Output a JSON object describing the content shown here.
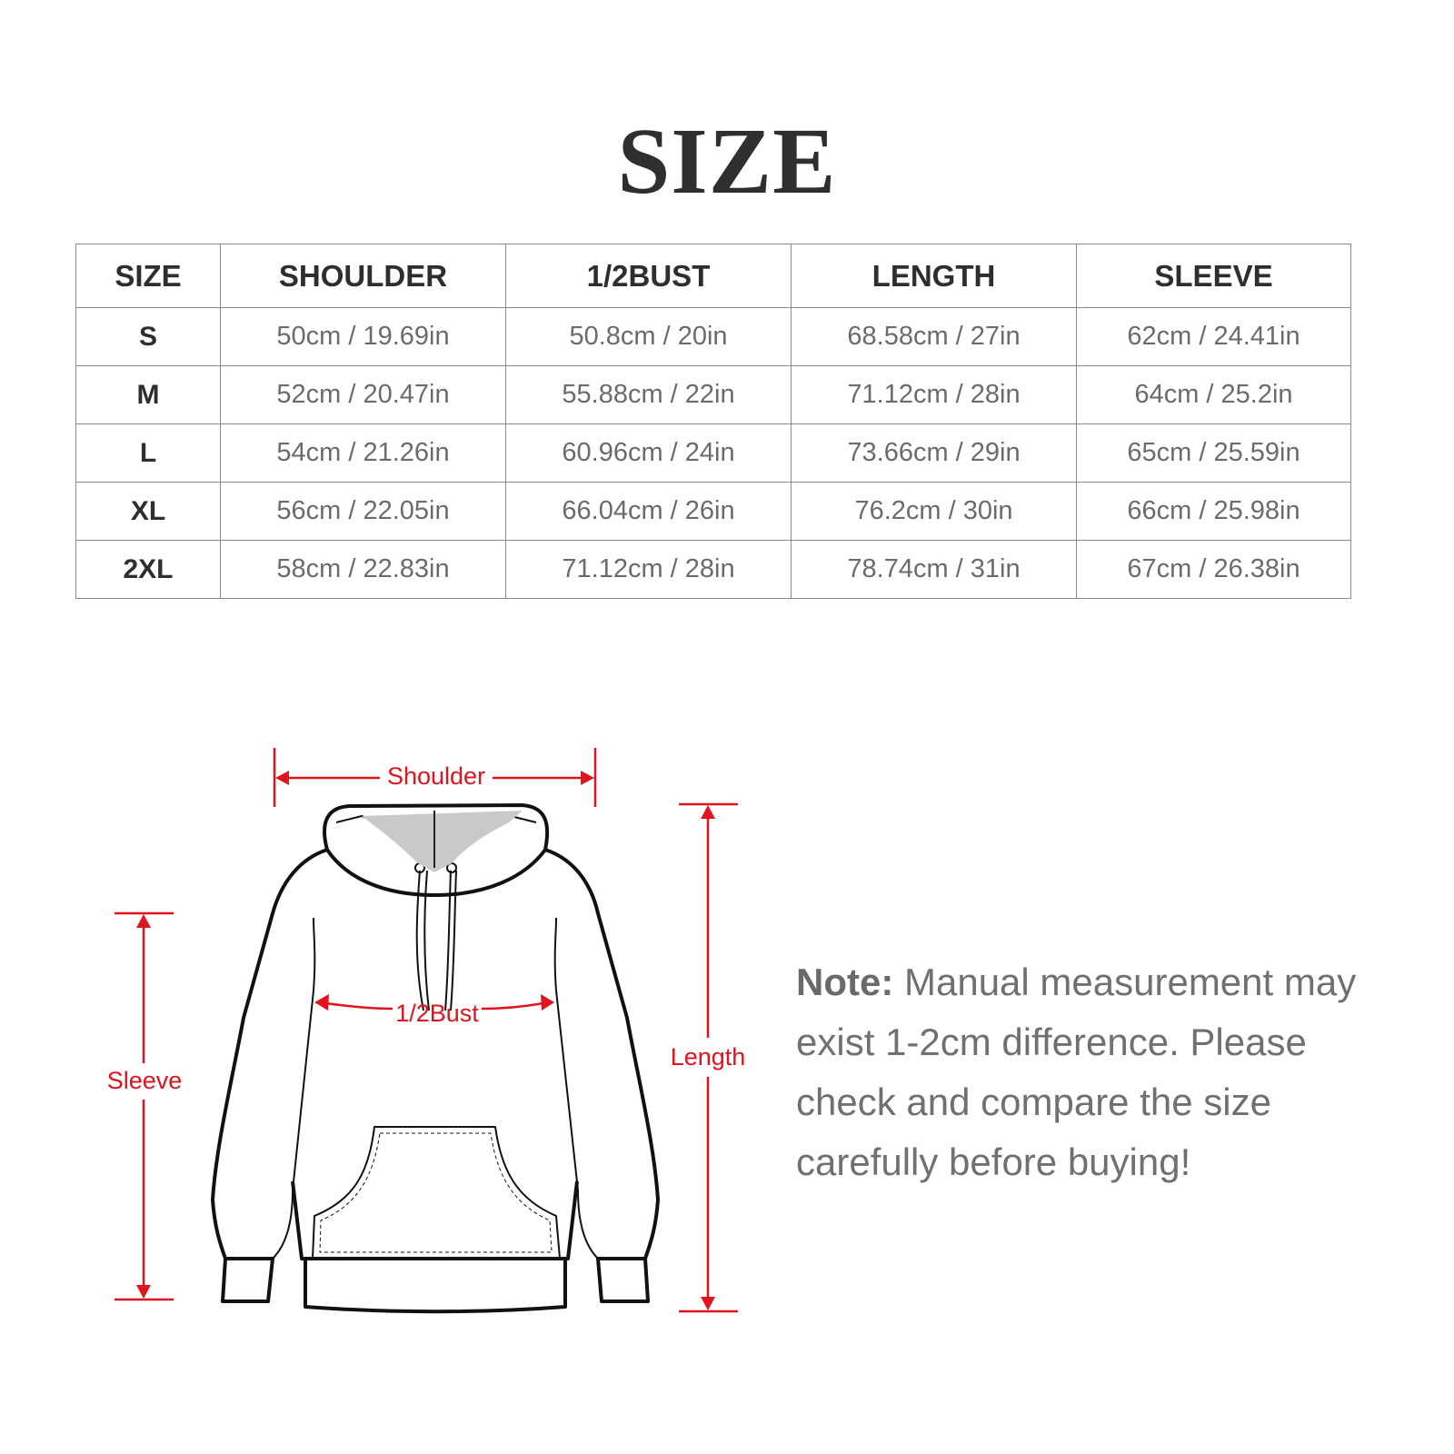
{
  "title": "SIZE",
  "table": {
    "headers": [
      "SIZE",
      "SHOULDER",
      "1/2BUST",
      "LENGTH",
      "SLEEVE"
    ],
    "rows": [
      [
        "S",
        "50cm / 19.69in",
        "50.8cm / 20in",
        "68.58cm / 27in",
        "62cm / 24.41in"
      ],
      [
        "M",
        "52cm / 20.47in",
        "55.88cm / 22in",
        "71.12cm / 28in",
        "64cm / 25.2in"
      ],
      [
        "L",
        "54cm / 21.26in",
        "60.96cm / 24in",
        "73.66cm / 29in",
        "65cm / 25.59in"
      ],
      [
        "XL",
        "56cm / 22.05in",
        "66.04cm / 26in",
        "76.2cm / 30in",
        "66cm / 25.98in"
      ],
      [
        "2XL",
        "58cm / 22.83in",
        "71.12cm / 28in",
        "78.74cm / 31in",
        "67cm / 26.38in"
      ]
    ]
  },
  "diagram": {
    "shoulder": "Shoulder",
    "bust": "1/2Bust",
    "sleeve": "Sleeve",
    "length": "Length",
    "accent_color": "#e0141e"
  },
  "note": {
    "label": "Note:",
    "text": " Manual measurement may exist 1-2cm difference. Please check and compare the size carefully before buying!"
  }
}
